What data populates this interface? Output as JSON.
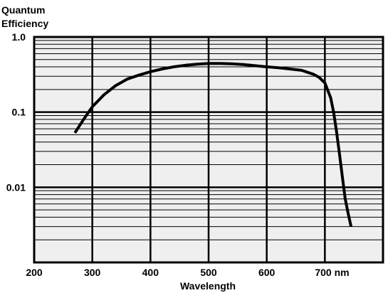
{
  "chart_data": {
    "type": "line",
    "title": "",
    "ylabel_lines": [
      "Quantum",
      "Efficiency"
    ],
    "xlabel": "Wavelength",
    "x_ticks": [
      {
        "value": 200,
        "label": "200"
      },
      {
        "value": 300,
        "label": "300"
      },
      {
        "value": 400,
        "label": "400"
      },
      {
        "value": 500,
        "label": "500"
      },
      {
        "value": 600,
        "label": "600"
      },
      {
        "value": 700,
        "label": "700 nm"
      }
    ],
    "y_ticks": [
      {
        "value": 1.0,
        "label": "1.0"
      },
      {
        "value": 0.1,
        "label": "0.1"
      },
      {
        "value": 0.01,
        "label": "0.01"
      }
    ],
    "y_scale": "log",
    "xlim": [
      200,
      800
    ],
    "ylim": [
      0.001,
      1.0
    ],
    "grid": true,
    "legend": "none",
    "colors": {
      "plot_background": "#efefef",
      "grid": "#000000",
      "line": "#000000"
    },
    "series": [
      {
        "x": [
          270,
          285,
          300,
          320,
          340,
          360,
          380,
          400,
          420,
          440,
          460,
          480,
          500,
          520,
          540,
          560,
          580,
          600,
          620,
          640,
          660,
          680,
          690,
          700,
          710,
          715,
          720,
          725,
          730,
          735,
          740,
          745
        ],
        "y": [
          0.053,
          0.08,
          0.118,
          0.17,
          0.225,
          0.275,
          0.31,
          0.345,
          0.375,
          0.4,
          0.42,
          0.435,
          0.445,
          0.445,
          0.44,
          0.43,
          0.415,
          0.4,
          0.39,
          0.375,
          0.36,
          0.32,
          0.29,
          0.245,
          0.155,
          0.1,
          0.055,
          0.028,
          0.014,
          0.007,
          0.0045,
          0.003
        ]
      }
    ]
  }
}
